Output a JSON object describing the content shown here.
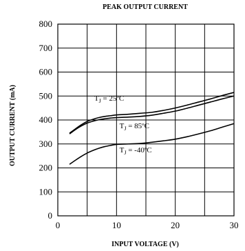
{
  "chart_data": {
    "type": "line",
    "title": "PEAK OUTPUT CURRENT",
    "xlabel": "INPUT VOLTAGE (V)",
    "ylabel": "OUTPUT CURRENT (mA)",
    "xlim": [
      0,
      30
    ],
    "ylim": [
      0,
      800
    ],
    "x_ticks": [
      0,
      10,
      20,
      30
    ],
    "y_ticks": [
      0,
      100,
      200,
      300,
      400,
      500,
      600,
      700,
      800
    ],
    "grid": true,
    "series": [
      {
        "name": "T_J = 25°C",
        "label_main": "T",
        "label_sub": "J",
        "label_rest": " = 25ºC",
        "x": [
          2,
          3,
          4,
          5,
          6,
          7,
          8,
          9,
          10,
          12,
          14,
          16,
          18,
          20,
          22,
          24,
          26,
          28,
          30
        ],
        "y": [
          345,
          363,
          380,
          394,
          403,
          410,
          415,
          418,
          421,
          424,
          428,
          432,
          440,
          450,
          462,
          475,
          488,
          502,
          515
        ]
      },
      {
        "name": "T_J = 85°C",
        "label_main": "T",
        "label_sub": "J",
        "label_rest": " = 85ºC",
        "x": [
          2,
          3,
          4,
          5,
          6,
          7,
          8,
          9,
          10,
          12,
          14,
          16,
          18,
          20,
          22,
          24,
          26,
          28,
          30
        ],
        "y": [
          342,
          360,
          375,
          387,
          395,
          401,
          405,
          408,
          410,
          412,
          415,
          420,
          428,
          437,
          449,
          462,
          475,
          488,
          500
        ]
      },
      {
        "name": "T_J = -40°C",
        "label_main": "T",
        "label_sub": "J",
        "label_rest": " = -40ºC",
        "x": [
          2,
          3,
          4,
          5,
          6,
          7,
          8,
          9,
          10,
          12,
          14,
          16,
          18,
          20,
          22,
          24,
          26,
          28,
          30
        ],
        "y": [
          215,
          232,
          248,
          262,
          273,
          282,
          289,
          294,
          298,
          300,
          302,
          307,
          313,
          320,
          330,
          342,
          355,
          370,
          385
        ]
      }
    ]
  }
}
